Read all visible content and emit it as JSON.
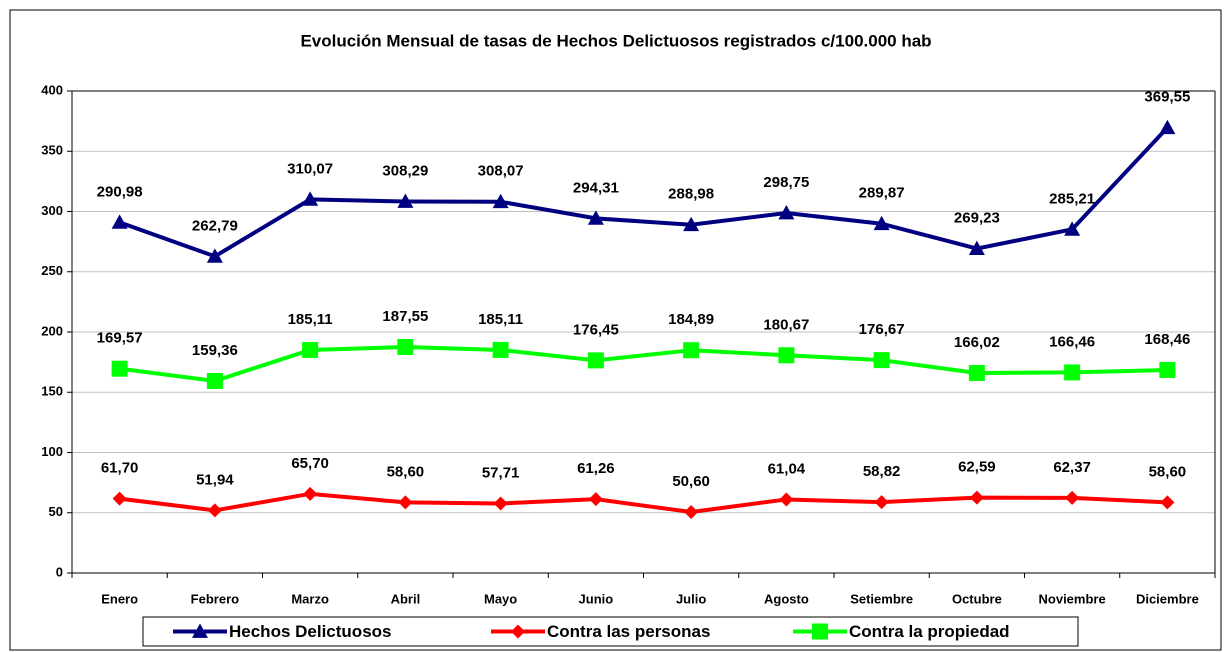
{
  "chart_data": {
    "type": "line",
    "title": "Evolución Mensual de tasas de Hechos Delictuosos registrados c/100.000 hab",
    "categories": [
      "Enero",
      "Febrero",
      "Marzo",
      "Abril",
      "Mayo",
      "Junio",
      "Julio",
      "Agosto",
      "Setiembre",
      "Octubre",
      "Noviembre",
      "Diciembre"
    ],
    "series": [
      {
        "name": "Hechos Delictuosos",
        "color": "#000080",
        "marker": "triangle",
        "values": [
          290.98,
          262.79,
          310.07,
          308.29,
          308.07,
          294.31,
          288.98,
          298.75,
          289.87,
          269.23,
          285.21,
          369.55
        ],
        "value_labels": [
          "290,98",
          "262,79",
          "310,07",
          "308,29",
          "308,07",
          "294,31",
          "288,98",
          "298,75",
          "289,87",
          "269,23",
          "285,21",
          "369,55"
        ]
      },
      {
        "name": "Contra las personas",
        "color": "#ff0000",
        "marker": "diamond",
        "values": [
          61.7,
          51.94,
          65.7,
          58.6,
          57.71,
          61.26,
          50.6,
          61.04,
          58.82,
          62.59,
          62.37,
          58.6
        ],
        "value_labels": [
          "61,70",
          "51,94",
          "65,70",
          "58,60",
          "57,71",
          "61,26",
          "50,60",
          "61,04",
          "58,82",
          "62,59",
          "62,37",
          "58,60"
        ]
      },
      {
        "name": "Contra la propiedad",
        "color": "#00ff00",
        "marker": "square",
        "values": [
          169.57,
          159.36,
          185.11,
          187.55,
          185.11,
          176.45,
          184.89,
          180.67,
          176.67,
          166.02,
          166.46,
          168.46
        ],
        "value_labels": [
          "169,57",
          "159,36",
          "185,11",
          "187,55",
          "185,11",
          "176,45",
          "184,89",
          "180,67",
          "176,67",
          "166,02",
          "166,46",
          "168,46"
        ]
      }
    ],
    "ylim": [
      0,
      400
    ],
    "yticks": [
      0,
      50,
      100,
      150,
      200,
      250,
      300,
      350,
      400
    ],
    "grid": true,
    "legend": "bottom"
  }
}
